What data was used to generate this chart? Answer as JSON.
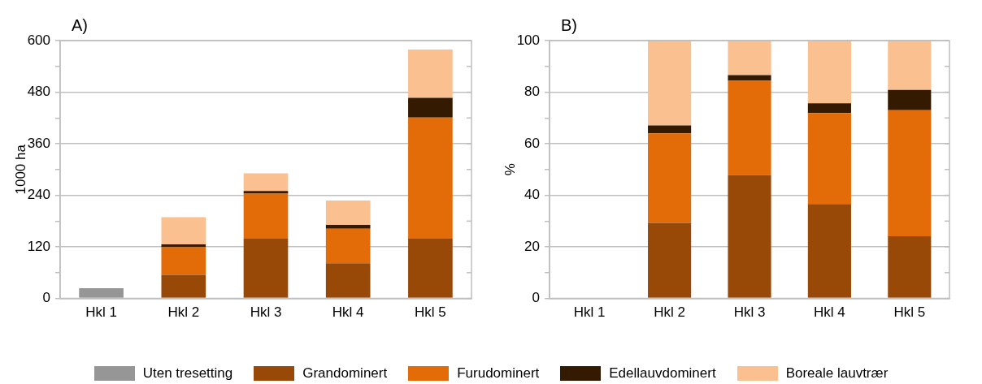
{
  "chart_data": [
    {
      "type": "bar",
      "title": "A)",
      "ylabel": "1000 ha",
      "categories": [
        "Hkl 1",
        "Hkl 2",
        "Hkl 3",
        "Hkl 4",
        "Hkl 5"
      ],
      "stacked": true,
      "ylim": [
        0,
        600
      ],
      "yticks": [
        0,
        {
          "value": 60,
          "label": null
        },
        120,
        {
          "value": 180,
          "label": null
        },
        240,
        {
          "value": 300,
          "label": null
        },
        360,
        {
          "value": 420,
          "label": null
        },
        480,
        {
          "value": 540,
          "label": null
        },
        600
      ],
      "grid": "y",
      "legend": "bottom",
      "series": [
        {
          "name": "Uten tresetting",
          "color": "#969696",
          "values": [
            24,
            null,
            null,
            null,
            null
          ]
        },
        {
          "name": "Grandominert",
          "color": "#984807",
          "values": [
            null,
            55,
            139,
            82,
            139
          ]
        },
        {
          "name": "Furudominert",
          "color": "#e36c09",
          "values": [
            null,
            64,
            105,
            80,
            282
          ]
        },
        {
          "name": "Edellauvdominert",
          "color": "#341a00",
          "values": [
            null,
            7,
            6,
            9,
            46
          ]
        },
        {
          "name": "Boreale lauvtrær",
          "color": "#fac090",
          "values": [
            null,
            63,
            41,
            57,
            112
          ]
        }
      ]
    },
    {
      "type": "bar",
      "title": "B)",
      "ylabel": "%",
      "categories": [
        "Hkl 1",
        "Hkl 2",
        "Hkl 3",
        "Hkl 4",
        "Hkl 5"
      ],
      "stacked": true,
      "ylim": [
        0,
        100
      ],
      "yticks": [
        0,
        {
          "value": 10,
          "label": null
        },
        20,
        {
          "value": 30,
          "label": null
        },
        40,
        {
          "value": 50,
          "label": null
        },
        60,
        {
          "value": 70,
          "label": null
        },
        80,
        {
          "value": 90,
          "label": null
        },
        100
      ],
      "grid": "y",
      "legend": "bottom",
      "series": [
        {
          "name": "Grandominert",
          "color": "#984807",
          "values": [
            null,
            29.3,
            47.9,
            36.6,
            24.1
          ]
        },
        {
          "name": "Furudominert",
          "color": "#e36c09",
          "values": [
            null,
            34.7,
            36.5,
            35.3,
            48.9
          ]
        },
        {
          "name": "Edellauvdominert",
          "color": "#341a00",
          "values": [
            null,
            3.1,
            2.2,
            3.8,
            7.9
          ]
        },
        {
          "name": "Boreale lauvtrær",
          "color": "#fac090",
          "values": [
            null,
            32.9,
            13.4,
            24.3,
            19.1
          ]
        }
      ]
    }
  ]
}
